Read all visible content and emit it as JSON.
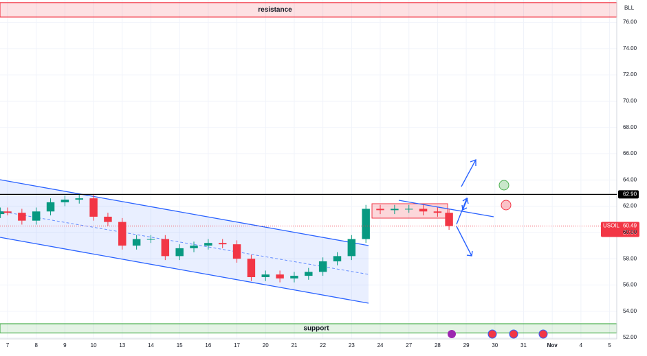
{
  "chart_data": {
    "type": "candlestick",
    "symbol_badge": "BLL",
    "x": [
      -0.25,
      0,
      0.5,
      1,
      1.5,
      2,
      2.5,
      3,
      3.5,
      4,
      4.5,
      5,
      5.5,
      6,
      6.5,
      7,
      7.5,
      8,
      8.5,
      9,
      9.5,
      10,
      10.5,
      11,
      11.5,
      12,
      12.5,
      13,
      13.5,
      14,
      14.5,
      15,
      15.4
    ],
    "open": [
      61.4,
      61.6,
      61.5,
      60.9,
      61.6,
      62.3,
      62.5,
      62.6,
      61.2,
      60.8,
      59.0,
      59.5,
      59.5,
      58.2,
      58.8,
      59.0,
      59.2,
      59.1,
      58.0,
      56.6,
      56.8,
      56.5,
      56.7,
      57.0,
      57.8,
      58.2,
      59.5,
      61.8,
      61.7,
      61.8,
      61.8,
      61.6,
      61.5
    ],
    "high": [
      61.9,
      61.9,
      61.8,
      61.9,
      62.6,
      62.8,
      62.9,
      62.9,
      61.5,
      61.1,
      59.8,
      59.8,
      59.8,
      59.1,
      59.3,
      59.5,
      59.5,
      59.4,
      58.3,
      57.1,
      57.1,
      57.0,
      57.3,
      58.1,
      58.5,
      59.8,
      62.1,
      62.1,
      62.1,
      62.1,
      62.1,
      61.9,
      61.8
    ],
    "low": [
      61.1,
      61.3,
      60.6,
      60.6,
      61.3,
      62.0,
      62.2,
      60.9,
      60.5,
      58.7,
      58.7,
      59.2,
      57.9,
      57.9,
      58.5,
      58.7,
      58.8,
      57.7,
      56.3,
      56.3,
      56.2,
      56.2,
      56.4,
      56.7,
      57.5,
      57.9,
      59.2,
      61.4,
      61.4,
      61.5,
      61.3,
      61.2,
      60.2
    ],
    "close": [
      61.6,
      61.5,
      60.9,
      61.6,
      62.3,
      62.5,
      62.6,
      61.2,
      60.8,
      59.0,
      59.5,
      59.5,
      58.2,
      58.8,
      59.0,
      59.2,
      59.1,
      58.0,
      56.6,
      56.8,
      56.5,
      56.7,
      57.0,
      57.8,
      58.2,
      59.5,
      61.8,
      61.7,
      61.8,
      61.8,
      61.6,
      61.5,
      60.49
    ],
    "up_color": "#089981",
    "down_color": "#f23645",
    "xlim": [
      -0.264,
      21.25
    ],
    "xticks": [
      {
        "value": 0,
        "label": "7"
      },
      {
        "value": 1,
        "label": "8"
      },
      {
        "value": 2,
        "label": "9"
      },
      {
        "value": 3,
        "label": "10"
      },
      {
        "value": 4,
        "label": "13"
      },
      {
        "value": 5,
        "label": "14"
      },
      {
        "value": 6,
        "label": "15"
      },
      {
        "value": 7,
        "label": "16"
      },
      {
        "value": 8,
        "label": "17"
      },
      {
        "value": 9,
        "label": "20"
      },
      {
        "value": 10,
        "label": "21"
      },
      {
        "value": 11,
        "label": "22"
      },
      {
        "value": 12,
        "label": "23"
      },
      {
        "value": 13,
        "label": "24"
      },
      {
        "value": 14,
        "label": "27"
      },
      {
        "value": 15,
        "label": "28"
      },
      {
        "value": 16,
        "label": "29"
      },
      {
        "value": 17,
        "label": "30"
      },
      {
        "value": 18,
        "label": "31"
      },
      {
        "value": 19,
        "label": "Nov"
      },
      {
        "value": 20,
        "label": "4"
      },
      {
        "value": 21,
        "label": "5"
      }
    ],
    "ylim": [
      51.9,
      77.7
    ],
    "yticks": [
      {
        "value": 52,
        "label": "52.00"
      },
      {
        "value": 54,
        "label": "54.00"
      },
      {
        "value": 56,
        "label": "56.00"
      },
      {
        "value": 58,
        "label": "58.00"
      },
      {
        "value": 60,
        "label": "60.00"
      },
      {
        "value": 62,
        "label": "62.00"
      },
      {
        "value": 64,
        "label": "64.00"
      },
      {
        "value": 66,
        "label": "66.00"
      },
      {
        "value": 68,
        "label": "68.00"
      },
      {
        "value": 70,
        "label": "70.00"
      },
      {
        "value": 72,
        "label": "72.00"
      },
      {
        "value": 74,
        "label": "74.00"
      },
      {
        "value": 76,
        "label": "76.00"
      }
    ],
    "grid": true,
    "zones": [
      {
        "label": "resistance",
        "top": 77.5,
        "bottom": 76.4,
        "color": "#f23645"
      },
      {
        "label": "support",
        "top": 53.05,
        "bottom": 52.35,
        "color": "#4caf50"
      }
    ],
    "price_line": {
      "value": 62.9,
      "label": "62.90"
    },
    "last_price": {
      "symbol": "USOIL",
      "value": 60.49,
      "time": "20:30"
    }
  }
}
